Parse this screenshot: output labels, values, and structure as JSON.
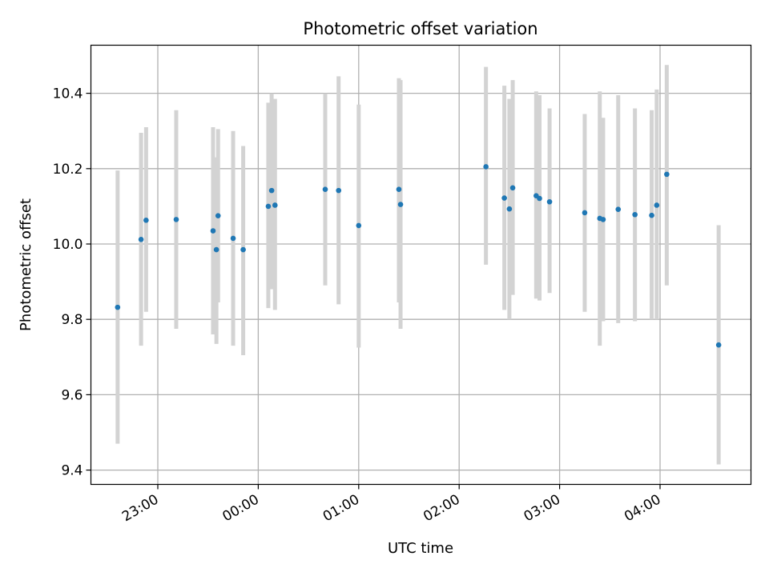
{
  "chart_data": {
    "type": "scatter",
    "title": "Photometric offset variation",
    "xlabel": "UTC time",
    "ylabel": "Photometric offset",
    "x_tick_labels": [
      "23:00",
      "00:00",
      "01:00",
      "02:00",
      "03:00",
      "04:00"
    ],
    "y_ticks": [
      9.4,
      9.6,
      9.8,
      10.0,
      10.2,
      10.4
    ],
    "y_tick_labels": [
      "9.4",
      "9.6",
      "9.8",
      "10.0",
      "10.2",
      "10.4"
    ],
    "grid": true,
    "colors": {
      "point": "#1f77b4",
      "errorbar": "#d3d3d3",
      "grid": "#b0b0b0"
    },
    "points": [
      {
        "t": "22:36",
        "y": 9.832,
        "lo": 9.47,
        "hi": 10.195
      },
      {
        "t": "22:50",
        "y": 10.012,
        "lo": 9.73,
        "hi": 10.295
      },
      {
        "t": "22:53",
        "y": 10.063,
        "lo": 9.82,
        "hi": 10.31
      },
      {
        "t": "23:11",
        "y": 10.065,
        "lo": 9.775,
        "hi": 10.355
      },
      {
        "t": "23:33",
        "y": 10.035,
        "lo": 9.76,
        "hi": 10.31
      },
      {
        "t": "23:35",
        "y": 9.985,
        "lo": 9.735,
        "hi": 10.23
      },
      {
        "t": "23:36",
        "y": 10.075,
        "lo": 9.845,
        "hi": 10.305
      },
      {
        "t": "23:45",
        "y": 10.015,
        "lo": 9.73,
        "hi": 10.3
      },
      {
        "t": "23:51",
        "y": 9.985,
        "lo": 9.705,
        "hi": 10.26
      },
      {
        "t": "00:06",
        "y": 10.1,
        "lo": 9.83,
        "hi": 10.375
      },
      {
        "t": "00:08",
        "y": 10.142,
        "lo": 9.88,
        "hi": 10.4
      },
      {
        "t": "00:10",
        "y": 10.103,
        "lo": 9.825,
        "hi": 10.385
      },
      {
        "t": "00:40",
        "y": 10.145,
        "lo": 9.89,
        "hi": 10.4
      },
      {
        "t": "00:48",
        "y": 10.142,
        "lo": 9.84,
        "hi": 10.445
      },
      {
        "t": "01:00",
        "y": 10.049,
        "lo": 9.725,
        "hi": 10.37
      },
      {
        "t": "01:24",
        "y": 10.145,
        "lo": 9.845,
        "hi": 10.44
      },
      {
        "t": "01:25",
        "y": 10.105,
        "lo": 9.775,
        "hi": 10.435
      },
      {
        "t": "02:16",
        "y": 10.205,
        "lo": 9.945,
        "hi": 10.47
      },
      {
        "t": "02:27",
        "y": 10.122,
        "lo": 9.825,
        "hi": 10.42
      },
      {
        "t": "02:30",
        "y": 10.093,
        "lo": 9.8,
        "hi": 10.385
      },
      {
        "t": "02:32",
        "y": 10.149,
        "lo": 9.865,
        "hi": 10.435
      },
      {
        "t": "02:46",
        "y": 10.128,
        "lo": 9.855,
        "hi": 10.405
      },
      {
        "t": "02:48",
        "y": 10.121,
        "lo": 9.85,
        "hi": 10.395
      },
      {
        "t": "02:54",
        "y": 10.112,
        "lo": 9.87,
        "hi": 10.36
      },
      {
        "t": "03:15",
        "y": 10.083,
        "lo": 9.82,
        "hi": 10.345
      },
      {
        "t": "03:24",
        "y": 10.068,
        "lo": 9.73,
        "hi": 10.405
      },
      {
        "t": "03:26",
        "y": 10.065,
        "lo": 9.795,
        "hi": 10.335
      },
      {
        "t": "03:35",
        "y": 10.092,
        "lo": 9.79,
        "hi": 10.395
      },
      {
        "t": "03:45",
        "y": 10.078,
        "lo": 9.795,
        "hi": 10.36
      },
      {
        "t": "03:55",
        "y": 10.076,
        "lo": 9.8,
        "hi": 10.355
      },
      {
        "t": "03:58",
        "y": 10.103,
        "lo": 9.8,
        "hi": 10.41
      },
      {
        "t": "04:04",
        "y": 10.185,
        "lo": 9.89,
        "hi": 10.475
      },
      {
        "t": "04:35",
        "y": 9.732,
        "lo": 9.415,
        "hi": 10.05
      }
    ]
  }
}
